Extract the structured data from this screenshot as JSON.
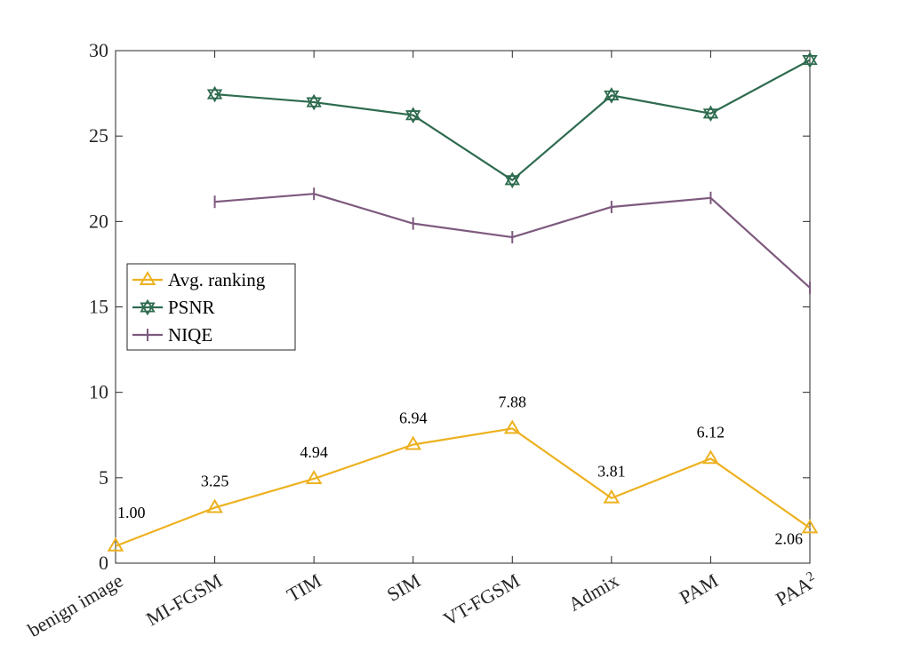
{
  "chart_data": {
    "type": "line",
    "categories": [
      "benign image",
      "MI-FGSM",
      "TIM",
      "SIM",
      "VT-FGSM",
      "Admix",
      "PAM",
      "PAA"
    ],
    "category_superscripts": [
      "",
      "",
      "",
      "",
      "",
      "",
      "",
      "2"
    ],
    "ylim": [
      0,
      30
    ],
    "yticks": [
      0,
      5,
      10,
      15,
      20,
      25,
      30
    ],
    "grid": false,
    "legend_position": "middle-left",
    "series": [
      {
        "name": "Avg. ranking",
        "color": "#EDB120",
        "marker": "triangle",
        "values": [
          1.0,
          3.25,
          4.94,
          6.94,
          7.88,
          3.81,
          6.12,
          2.06
        ],
        "labels": [
          "1.00",
          "3.25",
          "4.94",
          "6.94",
          "7.88",
          "3.81",
          "6.12",
          "2.06"
        ]
      },
      {
        "name": "PSNR",
        "color": "#2E6B4F",
        "marker": "hexagram",
        "values": [
          null,
          27.45,
          26.98,
          26.22,
          22.42,
          27.38,
          26.32,
          29.45
        ]
      },
      {
        "name": "NIQE",
        "color": "#7E5A7E",
        "marker": "vline",
        "values": [
          null,
          21.15,
          21.62,
          19.88,
          19.08,
          20.85,
          21.38,
          16.12
        ]
      }
    ]
  }
}
